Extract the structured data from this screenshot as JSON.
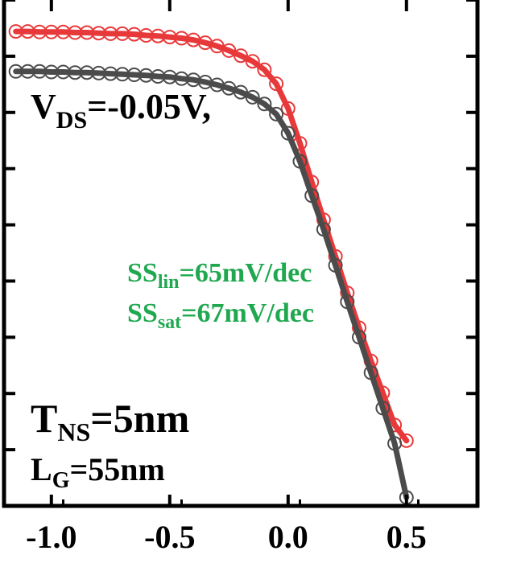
{
  "chart_data": {
    "type": "line",
    "title": "",
    "xlabel": "",
    "ylabel": "",
    "xlim": [
      -1.2,
      0.8
    ],
    "ylim": [
      -8,
      1
    ],
    "x_ticks": [
      -1.0,
      -0.5,
      0.0,
      0.5
    ],
    "x_tick_labels": [
      "-1.0",
      "-0.5",
      "0.0",
      "0.5"
    ],
    "y_ticks": [
      -8,
      -7,
      -6,
      -5,
      -4,
      -3,
      -2,
      -1,
      0,
      1
    ],
    "grid": false,
    "legend": "none",
    "colors": {
      "red": "#e8393a",
      "gray": "#4b4b4b",
      "annotation_green": "#1fa84f"
    },
    "series": [
      {
        "color": "#e8393a",
        "marker": "open-circle",
        "x": [
          -1.15,
          -1.1,
          -1.05,
          -1.0,
          -0.95,
          -0.9,
          -0.85,
          -0.8,
          -0.75,
          -0.7,
          -0.65,
          -0.6,
          -0.55,
          -0.5,
          -0.45,
          -0.4,
          -0.35,
          -0.3,
          -0.25,
          -0.2,
          -0.15,
          -0.1,
          -0.05,
          0.0,
          0.05,
          0.1,
          0.15,
          0.2,
          0.25,
          0.3,
          0.35,
          0.4,
          0.45,
          0.5
        ],
        "y": [
          0.44,
          0.44,
          0.43,
          0.43,
          0.43,
          0.42,
          0.42,
          0.41,
          0.4,
          0.4,
          0.39,
          0.37,
          0.36,
          0.34,
          0.32,
          0.29,
          0.24,
          0.18,
          0.1,
          0.01,
          -0.09,
          -0.24,
          -0.49,
          -0.93,
          -1.55,
          -2.24,
          -2.91,
          -3.56,
          -4.21,
          -4.83,
          -5.42,
          -5.99,
          -6.56,
          -6.84
        ]
      },
      {
        "color": "#4b4b4b",
        "marker": "open-circle",
        "x": [
          -1.15,
          -1.1,
          -1.05,
          -1.0,
          -0.95,
          -0.9,
          -0.85,
          -0.8,
          -0.75,
          -0.7,
          -0.65,
          -0.6,
          -0.55,
          -0.5,
          -0.45,
          -0.4,
          -0.35,
          -0.3,
          -0.25,
          -0.2,
          -0.15,
          -0.1,
          -0.05,
          0.0,
          0.05,
          0.1,
          0.15,
          0.2,
          0.25,
          0.3,
          0.35,
          0.4,
          0.45,
          0.5
        ],
        "y": [
          -0.27,
          -0.27,
          -0.27,
          -0.28,
          -0.28,
          -0.29,
          -0.29,
          -0.3,
          -0.31,
          -0.32,
          -0.33,
          -0.34,
          -0.36,
          -0.37,
          -0.4,
          -0.42,
          -0.46,
          -0.51,
          -0.57,
          -0.64,
          -0.73,
          -0.85,
          -1.03,
          -1.37,
          -1.87,
          -2.48,
          -3.08,
          -3.72,
          -4.37,
          -5.0,
          -5.63,
          -6.26,
          -6.89,
          -7.85
        ]
      }
    ],
    "annotations": {
      "vds": {
        "main": "V",
        "sub": "DS",
        "rest": "=-0.05V,"
      },
      "ss_lin": {
        "main": "SS",
        "sub": "lin",
        "rest": "=65mV/dec"
      },
      "ss_sat": {
        "main": "SS",
        "sub": "sat",
        "rest": "=67mV/dec"
      },
      "tns": {
        "main": "T",
        "sub": "NS",
        "rest": "=5nm"
      },
      "lg": {
        "main": "L",
        "sub": "G",
        "rest": "=55nm"
      }
    }
  }
}
